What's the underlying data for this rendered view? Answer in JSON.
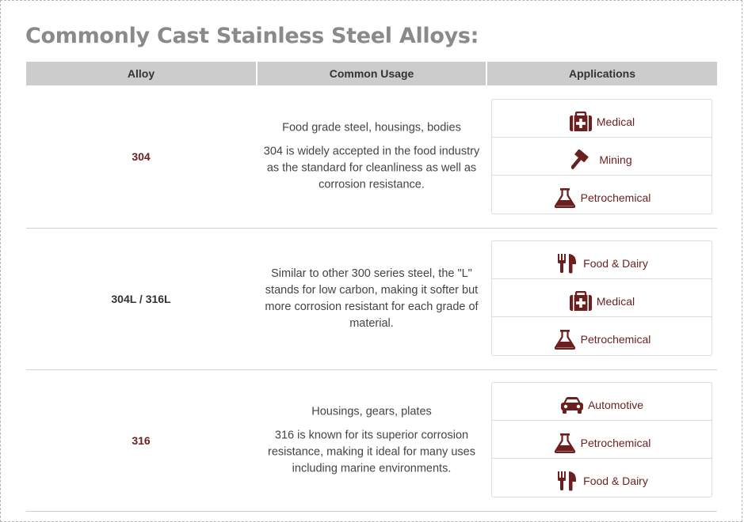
{
  "page": {
    "title": "Commonly Cast Stainless Steel Alloys:"
  },
  "table": {
    "headers": [
      "Alloy",
      "Common Usage",
      "Applications"
    ],
    "rows": [
      {
        "alloy": "304",
        "usage_lines": [
          "Food grade steel, housings, bodies",
          "304 is widely accepted in the food industry as the standard for cleanliness as well as corrosion resistance."
        ],
        "applications": [
          {
            "label": "Medical",
            "icon": "medical-kit-icon"
          },
          {
            "label": "Mining",
            "icon": "hammer-icon"
          },
          {
            "label": "Petrochemical",
            "icon": "flask-icon"
          }
        ]
      },
      {
        "alloy": "304L / 316L",
        "usage_lines": [
          "Similar to other 300 series steel, the \"L\" stands for low carbon, making it softer but more corrosion resistant for each grade of material."
        ],
        "applications": [
          {
            "label": "Food & Dairy",
            "icon": "fork-knife-icon"
          },
          {
            "label": "Medical",
            "icon": "medical-kit-icon"
          },
          {
            "label": "Petrochemical",
            "icon": "flask-icon"
          }
        ]
      },
      {
        "alloy": "316",
        "usage_lines": [
          "Housings, gears, plates",
          "316 is known for its superior corrosion resistance, making it ideal for many uses including marine environments."
        ],
        "applications": [
          {
            "label": "Automotive",
            "icon": "car-icon"
          },
          {
            "label": "Petrochemical",
            "icon": "flask-icon"
          },
          {
            "label": "Food & Dairy",
            "icon": "fork-knife-icon"
          }
        ]
      }
    ]
  },
  "colors": {
    "accent": "#6b1f1f",
    "header_bg": "#cccccc",
    "title": "#8a8a8a"
  }
}
